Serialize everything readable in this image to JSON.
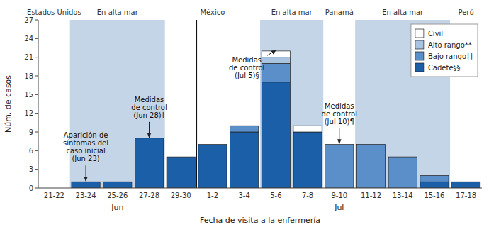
{
  "chart_data": {
    "type": "bar",
    "stacked": true,
    "categories": [
      "21-22",
      "23-24",
      "25-26",
      "27-28",
      "29-30",
      "1-2",
      "3-4",
      "5-6",
      "7-8",
      "9-10",
      "11-12",
      "13-14",
      "15-16",
      "17-18"
    ],
    "series": [
      {
        "name": "Cadete§§",
        "color": "#1a5fa8",
        "values": [
          0,
          1,
          1,
          8,
          5,
          7,
          9,
          17,
          9,
          0,
          0,
          0,
          1,
          1
        ]
      },
      {
        "name": "Bajo rango††",
        "color": "#5b8fc9",
        "values": [
          0,
          0,
          0,
          0,
          0,
          0,
          1,
          3,
          0,
          7,
          7,
          5,
          1,
          0
        ]
      },
      {
        "name": "Alto rango**",
        "color": "#a8c4e0",
        "values": [
          0,
          0,
          0,
          0,
          0,
          0,
          0,
          1,
          0,
          0,
          0,
          0,
          0,
          0
        ]
      },
      {
        "name": "Civil",
        "color": "#ffffff",
        "values": [
          0,
          0,
          0,
          0,
          0,
          0,
          0,
          1,
          1,
          0,
          0,
          0,
          0,
          0
        ]
      }
    ],
    "xlabel": "Fecha de visita a la enfermería",
    "ylabel": "Núm. de casos",
    "ylim": [
      0,
      27
    ],
    "yticks": [
      0,
      3,
      6,
      9,
      12,
      15,
      18,
      21,
      24,
      27
    ],
    "grid": false,
    "legend": "upper right",
    "groups": [
      {
        "label": "Jun",
        "from": "21-22",
        "to": "29-30"
      },
      {
        "label": "Jul",
        "from": "1-2",
        "to": "17-18"
      }
    ],
    "regions": [
      {
        "label": "Estados Unidos",
        "from": "21-22",
        "to": "21-22",
        "color": "#ffffff"
      },
      {
        "label": "En alta mar",
        "from": "23-24",
        "to": "27-28",
        "color": "#c5d5e8"
      },
      {
        "label": "México",
        "from": "29-30",
        "to": "3-4",
        "color": "#ffffff"
      },
      {
        "label": "En alta mar",
        "from": "5-6",
        "to": "7-8",
        "color": "#c5d5e8"
      },
      {
        "label": "Panamá",
        "from": "9-10",
        "to": "9-10",
        "color": "#ffffff"
      },
      {
        "label": "En alta mar",
        "from": "11-12",
        "to": "15-16",
        "color": "#c5d5e8"
      },
      {
        "label": "Perú",
        "from": "17-18",
        "to": "17-18",
        "color": "#ffffff"
      }
    ],
    "annotations": [
      {
        "text": "Aparición de\nsíntomas del\ncaso inicial\n(Jun 23)",
        "category": "23-24"
      },
      {
        "text": "Medidas\nde control\n(Jun 28)†",
        "category": "27-28"
      },
      {
        "text": "Medidas\nde control\n(Jul 5)§",
        "category": "5-6"
      },
      {
        "text": "Medidas\nde control\n(Jul 10)¶",
        "category": "9-10"
      }
    ]
  }
}
